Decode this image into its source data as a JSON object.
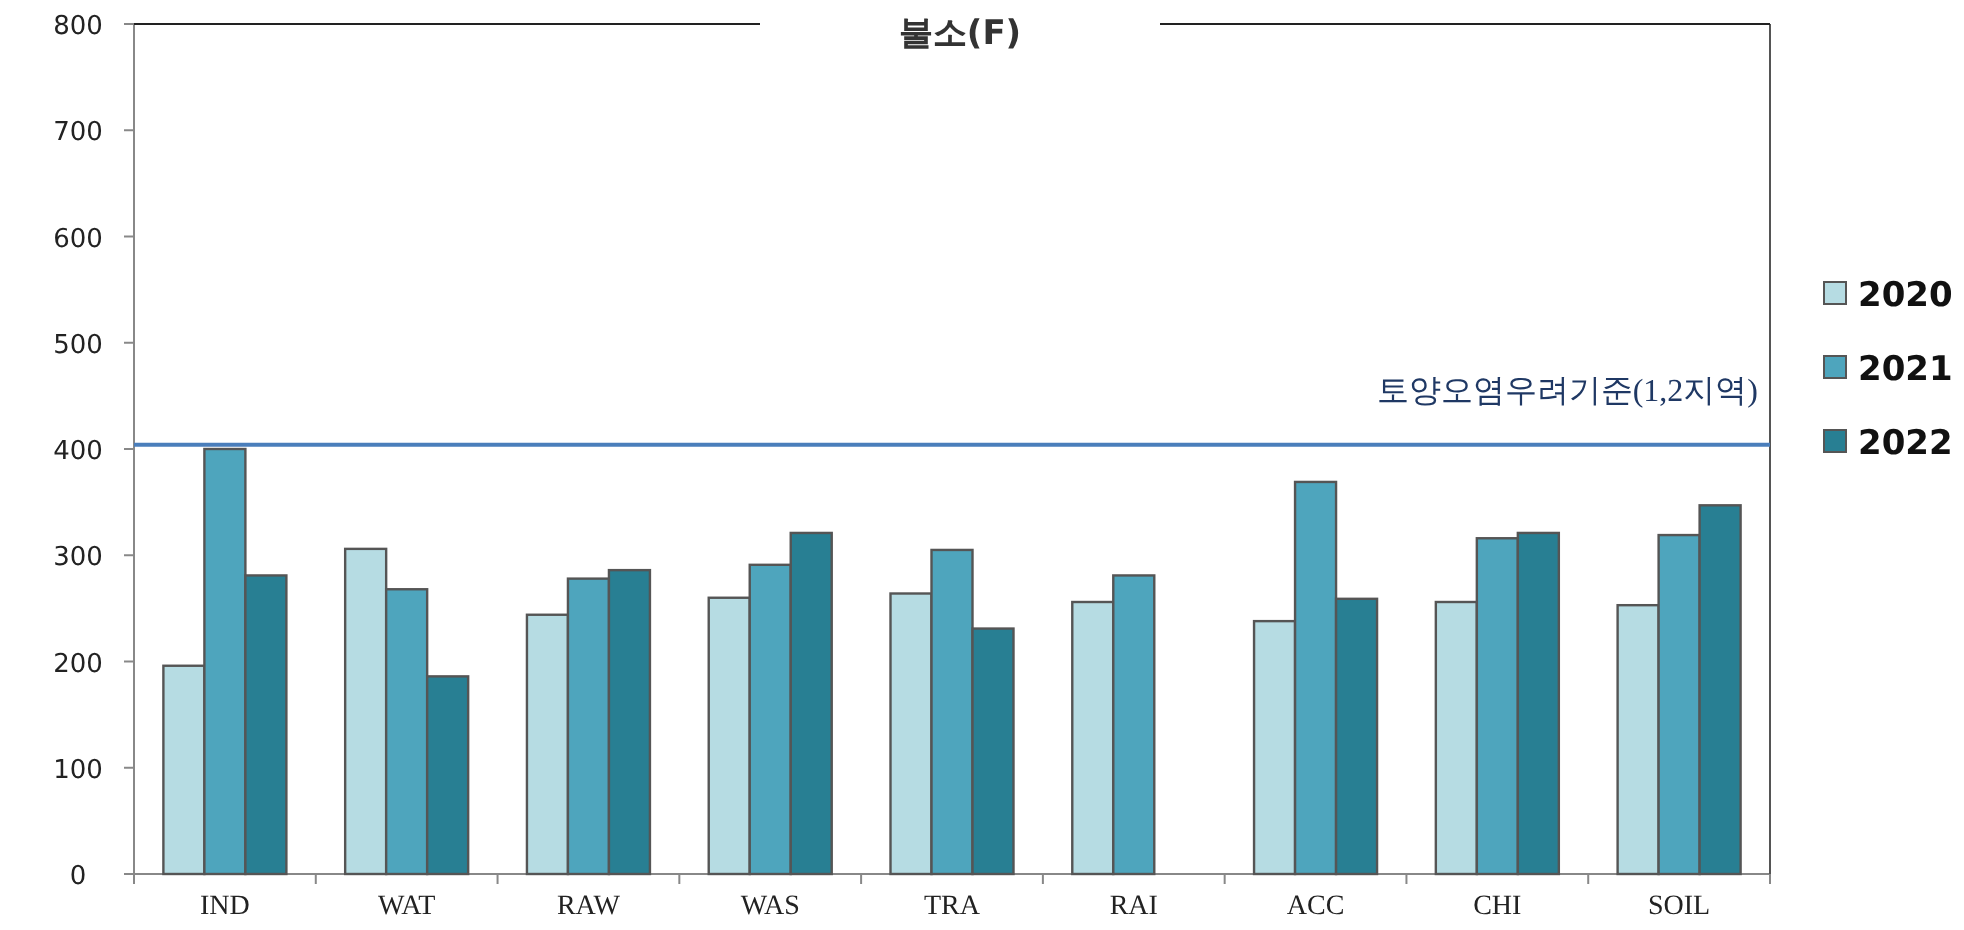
{
  "chart_data": {
    "type": "bar",
    "title": "불소(F)",
    "categories": [
      "IND",
      "WAT",
      "RAW",
      "WAS",
      "TRA",
      "RAI",
      "ACC",
      "CHI",
      "SOIL"
    ],
    "series": [
      {
        "name": "2020",
        "color": "#b6dce3",
        "values": [
          196,
          306,
          244,
          260,
          264,
          256,
          238,
          256,
          253
        ]
      },
      {
        "name": "2021",
        "color": "#4ea5bd",
        "values": [
          400,
          268,
          278,
          291,
          305,
          281,
          369,
          316,
          319
        ]
      },
      {
        "name": "2022",
        "color": "#287f93",
        "values": [
          281,
          186,
          286,
          321,
          231,
          null,
          259,
          321,
          347
        ]
      }
    ],
    "ylim": [
      0,
      800
    ],
    "yticks": [
      0,
      100,
      200,
      300,
      400,
      500,
      600,
      700,
      800
    ],
    "ref_lines": [
      {
        "axis": "y",
        "value": 404,
        "label": "토양오염우려기준(1,2지역)",
        "color": "#4a7ebb"
      }
    ],
    "legend": "right"
  }
}
